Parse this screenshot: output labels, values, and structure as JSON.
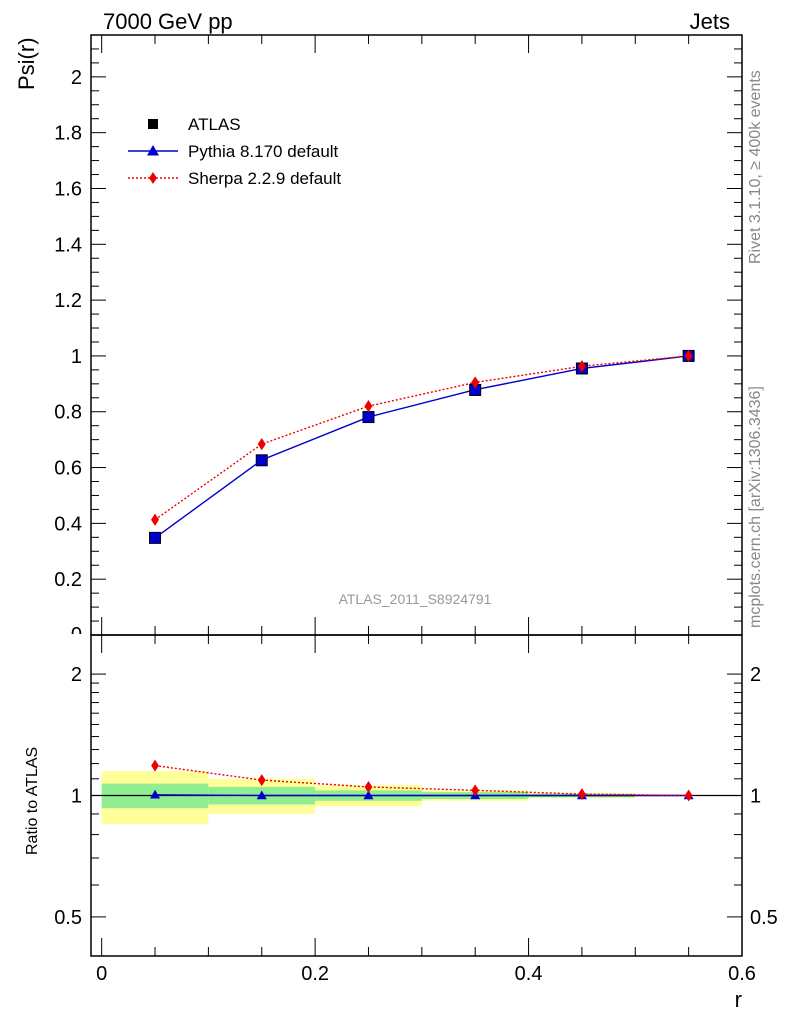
{
  "header": {
    "energy_label": "7000 GeV pp",
    "process_label": "Jets"
  },
  "side_text": {
    "rivet_label": "Rivet 3.1.10, ≥ 400k events",
    "source_label": "mcplots.cern.ch [arXiv:1306.3436]"
  },
  "watermark": "ATLAS_2011_S8924791",
  "chart_data": [
    {
      "type": "line",
      "panel": "main",
      "ylabel": "Psi(r)",
      "xlabel": "r",
      "xlim": [
        -0.01,
        0.6
      ],
      "ylim": [
        0,
        2.15
      ],
      "x_ticks": [
        "0",
        "0.2",
        "0.4",
        "0.6"
      ],
      "y_ticks": [
        "0.2",
        "0.4",
        "0.6",
        "0.8",
        "1",
        "1.2",
        "1.4",
        "1.6",
        "1.8",
        "2"
      ],
      "x": [
        0.05,
        0.15,
        0.25,
        0.35,
        0.45,
        0.55
      ],
      "series": [
        {
          "name": "ATLAS",
          "marker": "square",
          "color": "#000000",
          "values": [
            0.348,
            0.626,
            0.781,
            0.878,
            0.955,
            1.0
          ]
        },
        {
          "name": "Pythia 8.170 default",
          "marker": "triangle",
          "line": "solid",
          "color": "#0000cc",
          "values": [
            0.348,
            0.627,
            0.781,
            0.879,
            0.955,
            1.0
          ]
        },
        {
          "name": "Sherpa 2.2.9 default",
          "marker": "diamond",
          "line": "dotted",
          "color": "#ee0000",
          "values": [
            0.413,
            0.684,
            0.82,
            0.905,
            0.963,
            1.0
          ]
        }
      ],
      "legend_position": "top-left"
    },
    {
      "type": "line",
      "panel": "ratio",
      "ylabel": "Ratio to ATLAS",
      "xlabel": "r",
      "scale": "log",
      "xlim": [
        -0.01,
        0.6
      ],
      "ylim": [
        0.4,
        2.5
      ],
      "y_ticks": [
        "0.5",
        "1",
        "2"
      ],
      "x": [
        0.05,
        0.15,
        0.25,
        0.35,
        0.45,
        0.55
      ],
      "bands": {
        "bin_edges": [
          0.0,
          0.1,
          0.2,
          0.3,
          0.4,
          0.5,
          0.6
        ],
        "inner": {
          "color": "#90ee90",
          "lower": [
            0.93,
            0.95,
            0.97,
            0.98,
            0.99,
            1.0
          ],
          "upper": [
            1.07,
            1.05,
            1.03,
            1.02,
            1.01,
            1.0
          ]
        },
        "outer": {
          "color": "#ffff99",
          "lower": [
            0.85,
            0.9,
            0.94,
            0.97,
            0.985,
            1.0
          ],
          "upper": [
            1.15,
            1.1,
            1.06,
            1.03,
            1.015,
            1.0
          ]
        }
      },
      "series": [
        {
          "name": "Pythia 8.170 default",
          "marker": "triangle",
          "line": "solid",
          "color": "#0000cc",
          "values": [
            1.004,
            1.0,
            1.0,
            1.0,
            1.0,
            1.0
          ]
        },
        {
          "name": "Sherpa 2.2.9 default",
          "marker": "diamond",
          "line": "dotted",
          "color": "#ee0000",
          "values": [
            1.186,
            1.092,
            1.05,
            1.03,
            1.008,
            1.0
          ]
        }
      ]
    }
  ]
}
